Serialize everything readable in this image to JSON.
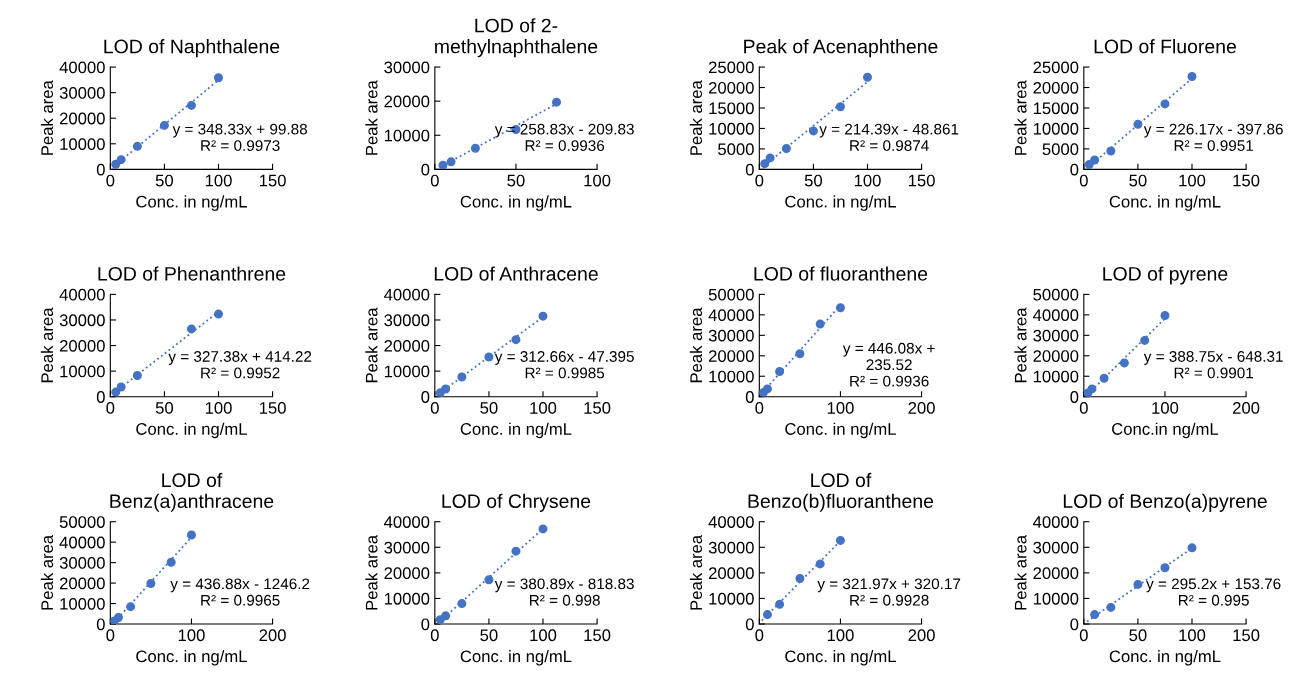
{
  "chart_data": [
    {
      "type": "scatter",
      "title": "LOD of Naphthalene",
      "xlabel": "Conc. in ng/mL",
      "ylabel": "Peak area",
      "xlim": [
        0,
        150
      ],
      "xticks": [
        0,
        50,
        100,
        150
      ],
      "ylim": [
        0,
        40000
      ],
      "yticks": [
        0,
        10000,
        20000,
        30000,
        40000
      ],
      "grid": false,
      "legend": false,
      "marker": "circle",
      "annotations": [
        "y = 348.33x + 99.88",
        "R² = 0.9973"
      ],
      "series": [
        {
          "type": "scatter",
          "color": "#4472c4",
          "x": [
            5,
            10,
            25,
            50,
            75,
            100
          ],
          "values": [
            2000,
            3800,
            9000,
            17200,
            25000,
            35800
          ]
        },
        {
          "type": "line",
          "line_style": "dotted",
          "marker": "none",
          "color": "#4472c4",
          "x": [
            5,
            100
          ],
          "values": [
            1800,
            34900
          ]
        }
      ]
    },
    {
      "type": "scatter",
      "title": "LOD of 2-\nmethylnaphthalene",
      "xlabel": "Conc. in ng/mL",
      "ylabel": "Peak area",
      "xlim": [
        0,
        100
      ],
      "xticks": [
        0,
        50,
        100
      ],
      "ylim": [
        0,
        30000
      ],
      "yticks": [
        0,
        10000,
        20000,
        30000
      ],
      "grid": false,
      "legend": false,
      "marker": "circle",
      "annotations": [
        "y = 258.83x - 209.83",
        "R² = 0.9936"
      ],
      "series": [
        {
          "type": "scatter",
          "color": "#4472c4",
          "x": [
            5,
            10,
            25,
            50,
            75
          ],
          "values": [
            1200,
            2200,
            6200,
            11700,
            19700
          ]
        },
        {
          "type": "line",
          "line_style": "dotted",
          "marker": "none",
          "color": "#4472c4",
          "x": [
            5,
            75
          ],
          "values": [
            1100,
            19200
          ]
        }
      ]
    },
    {
      "type": "scatter",
      "title": "Peak of Acenaphthene",
      "xlabel": "Conc. in ng/mL",
      "ylabel": "Peak area",
      "xlim": [
        0,
        150
      ],
      "xticks": [
        0,
        50,
        100,
        150
      ],
      "ylim": [
        0,
        25000
      ],
      "yticks": [
        0,
        5000,
        10000,
        15000,
        20000,
        25000
      ],
      "grid": false,
      "legend": false,
      "marker": "circle",
      "annotations": [
        "y = 214.39x - 48.861",
        "R² = 0.9874"
      ],
      "series": [
        {
          "type": "scatter",
          "color": "#4472c4",
          "x": [
            5,
            10,
            25,
            50,
            75,
            100
          ],
          "values": [
            1400,
            2800,
            5100,
            9400,
            15300,
            22500
          ]
        },
        {
          "type": "line",
          "line_style": "dotted",
          "marker": "none",
          "color": "#4472c4",
          "x": [
            5,
            100
          ],
          "values": [
            1000,
            21400
          ]
        }
      ]
    },
    {
      "type": "scatter",
      "title": "LOD of Fluorene",
      "xlabel": "Conc. in ng/mL",
      "ylabel": "Peak area",
      "xlim": [
        0,
        150
      ],
      "xticks": [
        0,
        50,
        100,
        150
      ],
      "ylim": [
        0,
        25000
      ],
      "yticks": [
        0,
        5000,
        10000,
        15000,
        20000,
        25000
      ],
      "grid": false,
      "legend": false,
      "marker": "circle",
      "annotations": [
        "y = 226.17x - 397.86",
        "R² = 0.9951"
      ],
      "series": [
        {
          "type": "scatter",
          "color": "#4472c4",
          "x": [
            5,
            10,
            25,
            50,
            75,
            100
          ],
          "values": [
            1200,
            2300,
            4500,
            11000,
            16000,
            22700
          ]
        },
        {
          "type": "line",
          "line_style": "dotted",
          "marker": "none",
          "color": "#4472c4",
          "x": [
            5,
            100
          ],
          "values": [
            700,
            22200
          ]
        }
      ]
    },
    {
      "type": "scatter",
      "title": "LOD of Phenanthrene",
      "xlabel": "Conc. in ng/mL",
      "ylabel": "Peak area",
      "xlim": [
        0,
        150
      ],
      "xticks": [
        0,
        50,
        100,
        150
      ],
      "ylim": [
        0,
        40000
      ],
      "yticks": [
        0,
        10000,
        20000,
        30000,
        40000
      ],
      "grid": false,
      "legend": false,
      "marker": "circle",
      "annotations": [
        "y = 327.38x + 414.22",
        "R² = 0.9952"
      ],
      "series": [
        {
          "type": "scatter",
          "color": "#4472c4",
          "x": [
            5,
            10,
            25,
            75,
            100
          ],
          "values": [
            1800,
            3800,
            8300,
            26500,
            32300
          ]
        },
        {
          "type": "line",
          "line_style": "dotted",
          "marker": "none",
          "color": "#4472c4",
          "x": [
            5,
            100
          ],
          "values": [
            2000,
            33200
          ]
        }
      ]
    },
    {
      "type": "scatter",
      "title": "LOD of Anthracene",
      "xlabel": "Conc. in ng/mL",
      "ylabel": "Peak area",
      "xlim": [
        0,
        150
      ],
      "xticks": [
        0,
        50,
        100,
        150
      ],
      "ylim": [
        0,
        40000
      ],
      "yticks": [
        0,
        10000,
        20000,
        30000,
        40000
      ],
      "grid": false,
      "legend": false,
      "marker": "circle",
      "annotations": [
        "y = 312.66x - 47.395",
        "R² = 0.9985"
      ],
      "series": [
        {
          "type": "scatter",
          "color": "#4472c4",
          "x": [
            5,
            10,
            25,
            50,
            75,
            100
          ],
          "values": [
            1500,
            3000,
            7700,
            15500,
            22300,
            31500
          ]
        },
        {
          "type": "line",
          "line_style": "dotted",
          "marker": "none",
          "color": "#4472c4",
          "x": [
            5,
            100
          ],
          "values": [
            1500,
            31200
          ]
        }
      ]
    },
    {
      "type": "scatter",
      "title": "LOD of fluoranthene",
      "xlabel": "Conc. in ng/mL",
      "ylabel": "Peak area",
      "xlim": [
        0,
        200
      ],
      "xticks": [
        0,
        100,
        200
      ],
      "ylim": [
        0,
        50000
      ],
      "yticks": [
        0,
        10000,
        20000,
        30000,
        40000,
        50000
      ],
      "grid": false,
      "legend": false,
      "marker": "circle",
      "annotations": [
        "y = 446.08x +\n235.52",
        "R² = 0.9936"
      ],
      "series": [
        {
          "type": "scatter",
          "color": "#4472c4",
          "x": [
            5,
            10,
            25,
            50,
            75,
            100
          ],
          "values": [
            2000,
            3800,
            12300,
            21000,
            35500,
            43500
          ]
        },
        {
          "type": "line",
          "line_style": "dotted",
          "marker": "none",
          "color": "#4472c4",
          "x": [
            5,
            100
          ],
          "values": [
            2500,
            44800
          ]
        }
      ]
    },
    {
      "type": "scatter",
      "title": "LOD of pyrene",
      "xlabel": "Conc.in ng/mL",
      "ylabel": "Peak area",
      "xlim": [
        0,
        200
      ],
      "xticks": [
        0,
        100,
        200
      ],
      "ylim": [
        0,
        50000
      ],
      "yticks": [
        0,
        10000,
        20000,
        30000,
        40000,
        50000
      ],
      "grid": false,
      "legend": false,
      "marker": "circle",
      "annotations": [
        "y = 388.75x - 648.31",
        "R² = 0.9901"
      ],
      "series": [
        {
          "type": "scatter",
          "color": "#4472c4",
          "x": [
            5,
            10,
            25,
            50,
            75,
            100
          ],
          "values": [
            1800,
            3800,
            9000,
            16500,
            27500,
            39700
          ]
        },
        {
          "type": "line",
          "line_style": "dotted",
          "marker": "none",
          "color": "#4472c4",
          "x": [
            5,
            100
          ],
          "values": [
            1300,
            38200
          ]
        }
      ]
    },
    {
      "type": "scatter",
      "title": "LOD of\nBenz(a)anthracene",
      "xlabel": "Conc. in ng/mL",
      "ylabel": "Peak area",
      "xlim": [
        0,
        200
      ],
      "xticks": [
        0,
        100,
        200
      ],
      "ylim": [
        0,
        50000
      ],
      "yticks": [
        0,
        10000,
        20000,
        30000,
        40000,
        50000
      ],
      "grid": false,
      "legend": false,
      "marker": "circle",
      "annotations": [
        "y = 436.88x - 1246.2",
        "R² = 0.9965"
      ],
      "series": [
        {
          "type": "scatter",
          "color": "#4472c4",
          "x": [
            5,
            10,
            25,
            50,
            75,
            100
          ],
          "values": [
            1500,
            3200,
            8500,
            19800,
            30200,
            43500
          ]
        },
        {
          "type": "line",
          "line_style": "dotted",
          "marker": "none",
          "color": "#4472c4",
          "x": [
            5,
            100
          ],
          "values": [
            900,
            42400
          ]
        }
      ]
    },
    {
      "type": "scatter",
      "title": "LOD of Chrysene",
      "xlabel": "Conc. in ng/mL",
      "ylabel": "Peak area",
      "xlim": [
        0,
        150
      ],
      "xticks": [
        0,
        50,
        100,
        150
      ],
      "ylim": [
        0,
        40000
      ],
      "yticks": [
        0,
        10000,
        20000,
        30000,
        40000
      ],
      "grid": false,
      "legend": false,
      "marker": "circle",
      "annotations": [
        "y = 380.89x - 818.83",
        "R² = 0.998"
      ],
      "series": [
        {
          "type": "scatter",
          "color": "#4472c4",
          "x": [
            5,
            10,
            25,
            50,
            75,
            100
          ],
          "values": [
            1700,
            3200,
            8000,
            17300,
            28500,
            37200
          ]
        },
        {
          "type": "line",
          "line_style": "dotted",
          "marker": "none",
          "color": "#4472c4",
          "x": [
            5,
            100
          ],
          "values": [
            1100,
            37300
          ]
        }
      ]
    },
    {
      "type": "scatter",
      "title": "LOD of\nBenzo(b)fluoranthene",
      "xlabel": "Conc. in ng/mL",
      "ylabel": "Peak area",
      "xlim": [
        0,
        200
      ],
      "xticks": [
        0,
        100,
        200
      ],
      "ylim": [
        0,
        40000
      ],
      "yticks": [
        0,
        10000,
        20000,
        30000,
        40000
      ],
      "grid": false,
      "legend": false,
      "marker": "circle",
      "annotations": [
        "y = 321.97x + 320.17",
        "R² = 0.9928"
      ],
      "series": [
        {
          "type": "scatter",
          "color": "#4472c4",
          "x": [
            10,
            25,
            50,
            75,
            100
          ],
          "values": [
            3700,
            7700,
            17800,
            23500,
            32700
          ]
        },
        {
          "type": "line",
          "line_style": "dotted",
          "marker": "none",
          "color": "#4472c4",
          "x": [
            3,
            100
          ],
          "values": [
            1300,
            32500
          ]
        }
      ]
    },
    {
      "type": "scatter",
      "title": "LOD of Benzo(a)pyrene",
      "xlabel": "Conc. in ng/mL",
      "ylabel": "Peak area",
      "xlim": [
        0,
        150
      ],
      "xticks": [
        0,
        50,
        100,
        150
      ],
      "ylim": [
        0,
        40000
      ],
      "yticks": [
        0,
        10000,
        20000,
        30000,
        40000
      ],
      "grid": false,
      "legend": false,
      "marker": "circle",
      "annotations": [
        "y = 295.2x + 153.76",
        "R² = 0.995"
      ],
      "series": [
        {
          "type": "scatter",
          "color": "#4472c4",
          "x": [
            10,
            25,
            50,
            75,
            100
          ],
          "values": [
            3700,
            6500,
            15500,
            22000,
            29800
          ]
        },
        {
          "type": "line",
          "line_style": "dotted",
          "marker": "none",
          "color": "#4472c4",
          "x": [
            3,
            100
          ],
          "values": [
            1000,
            29700
          ]
        }
      ]
    }
  ]
}
